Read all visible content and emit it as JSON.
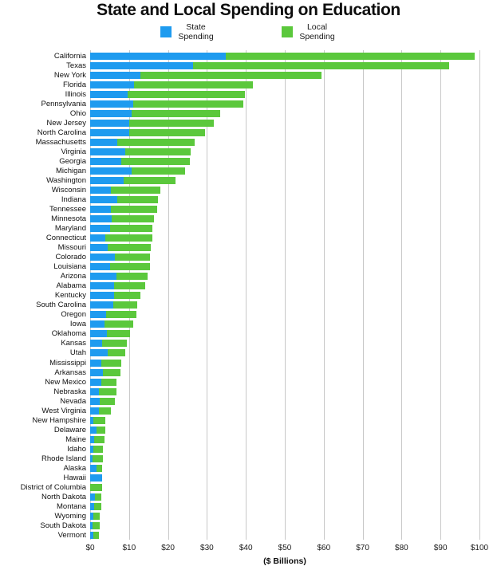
{
  "title": "State and Local Spending on Education",
  "colors": {
    "state": "#1E9BEF",
    "local": "#5BC83C",
    "gridline": "#C8C8C8"
  },
  "legend": [
    {
      "label": "State Spending",
      "color_key": "state"
    },
    {
      "label": "Local Spending",
      "color_key": "local"
    }
  ],
  "x_axis": {
    "title": "($ Billions)",
    "ticks": [
      "$0",
      "$10",
      "$20",
      "$30",
      "$40",
      "$50",
      "$60",
      "$70",
      "$80",
      "$90",
      "$100"
    ],
    "tick_values": [
      0,
      10,
      20,
      30,
      40,
      50,
      60,
      70,
      80,
      90,
      100
    ]
  },
  "chart_data": {
    "type": "bar",
    "orientation": "horizontal",
    "stacked": true,
    "title": "State and Local Spending on Education",
    "xlabel": "($ Billions)",
    "xlim": [
      0,
      100
    ],
    "grid": true,
    "legend_position": "top",
    "categories": [
      "California",
      "Texas",
      "New York",
      "Florida",
      "Illinois",
      "Pennsylvania",
      "Ohio",
      "New Jersey",
      "North Carolina",
      "Massachusetts",
      "Virginia",
      "Georgia",
      "Michigan",
      "Washington",
      "Wisconsin",
      "Indiana",
      "Tennessee",
      "Minnesota",
      "Maryland",
      "Connecticut",
      "Missouri",
      "Colorado",
      "Louisiana",
      "Arizona",
      "Alabama",
      "Kentucky",
      "South Carolina",
      "Oregon",
      "Iowa",
      "Oklahoma",
      "Kansas",
      "Utah",
      "Mississippi",
      "Arkansas",
      "New Mexico",
      "Nebraska",
      "Nevada",
      "West Virginia",
      "New Hampshire",
      "Delaware",
      "Maine",
      "Idaho",
      "Rhode Island",
      "Alaska",
      "Hawaii",
      "District of Columbia",
      "North Dakota",
      "Montana",
      "Wyoming",
      "South Dakota",
      "Vermont"
    ],
    "series": [
      {
        "name": "State Spending",
        "values": [
          35,
          26.5,
          13,
          11.3,
          9.7,
          11,
          10.6,
          10,
          10.1,
          7,
          9.1,
          8,
          10.7,
          8.7,
          5.3,
          7,
          5.3,
          5.6,
          5.1,
          4,
          4.5,
          6.3,
          5.1,
          6.8,
          6.2,
          6.2,
          6,
          4.1,
          3.7,
          4.4,
          3,
          4.6,
          2.9,
          3.3,
          2.9,
          2.3,
          2.4,
          2.2,
          0.9,
          1.7,
          1.1,
          0.8,
          0.7,
          1.6,
          3.1,
          0,
          1.2,
          1.0,
          0.8,
          0.7,
          0.9
        ]
      },
      {
        "name": "Local Spending",
        "values": [
          64,
          66,
          46.5,
          30.6,
          30.2,
          28.5,
          22.8,
          21.8,
          19.5,
          19.9,
          16.7,
          17.7,
          13.8,
          13.2,
          12.7,
          10.4,
          11.9,
          10.9,
          11,
          12,
          11.1,
          9.2,
          10.2,
          7.9,
          8,
          6.8,
          6.2,
          7.8,
          7.4,
          5.9,
          6.5,
          4.4,
          5.2,
          4.6,
          3.9,
          4.5,
          4,
          3.1,
          3.1,
          2.2,
          2.6,
          2.5,
          2.5,
          1.5,
          0,
          3.0,
          1.7,
          1.8,
          1.7,
          1.7,
          1.4
        ]
      }
    ]
  }
}
